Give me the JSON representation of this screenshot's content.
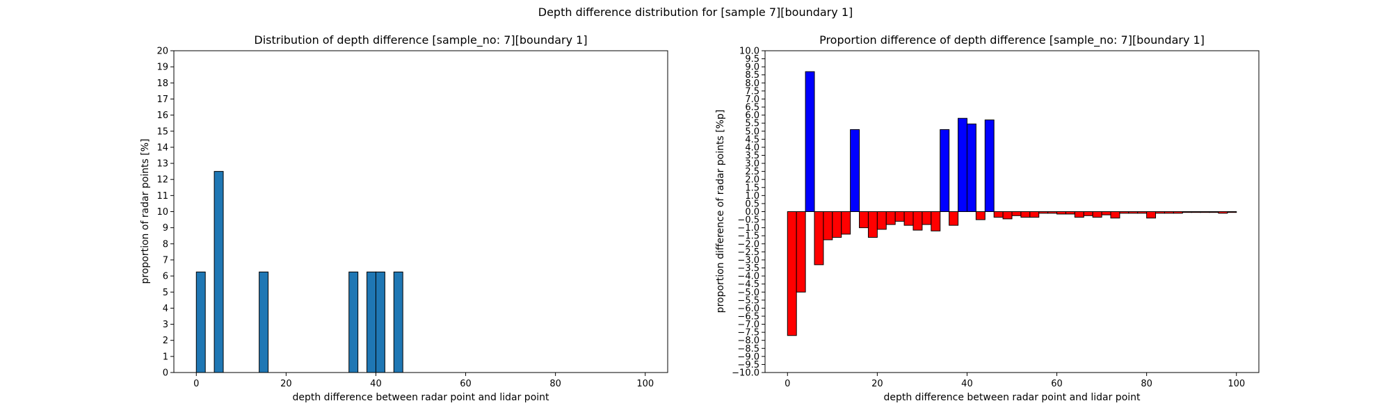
{
  "figure": {
    "suptitle": "Depth difference distribution for [sample 7][boundary 1]"
  },
  "chart_data": [
    {
      "type": "bar",
      "title": "Distribution of depth difference [sample_no: 7][boundary 1]",
      "xlabel": "depth difference between radar point and lidar point",
      "ylabel": "proportion of radar points [%]",
      "xlim": [
        -5,
        105
      ],
      "ylim": [
        0,
        20
      ],
      "xticks": [
        0,
        20,
        40,
        60,
        80,
        100
      ],
      "xtick_labels": [
        "0",
        "20",
        "40",
        "60",
        "80",
        "100"
      ],
      "yticks": [
        0,
        1,
        2,
        3,
        4,
        5,
        6,
        7,
        8,
        9,
        10,
        11,
        12,
        13,
        14,
        15,
        16,
        17,
        18,
        19,
        20
      ],
      "ytick_labels": [
        "0",
        "1",
        "2",
        "3",
        "4",
        "5",
        "6",
        "7",
        "8",
        "9",
        "10",
        "11",
        "12",
        "13",
        "14",
        "15",
        "16",
        "17",
        "18",
        "19",
        "20"
      ],
      "bar_width": 2,
      "bar_color": "#1f77b4",
      "edge_color": "#000000",
      "grid": false,
      "x": [
        1,
        5,
        15,
        35,
        39,
        41,
        45
      ],
      "values": [
        6.25,
        12.5,
        6.25,
        6.25,
        6.25,
        6.25,
        6.25
      ]
    },
    {
      "type": "bar",
      "title": "Proportion difference of depth difference [sample_no: 7][boundary 1]",
      "xlabel": "depth difference between radar point and lidar point",
      "ylabel": "proportion difference of radar points [%p]",
      "xlim": [
        -5,
        105
      ],
      "ylim": [
        -10,
        10
      ],
      "xticks": [
        0,
        20,
        40,
        60,
        80,
        100
      ],
      "xtick_labels": [
        "0",
        "20",
        "40",
        "60",
        "80",
        "100"
      ],
      "yticks": [
        -10,
        -9.5,
        -9,
        -8.5,
        -8,
        -7.5,
        -7,
        -6.5,
        -6,
        -5.5,
        -5,
        -4.5,
        -4,
        -3.5,
        -3,
        -2.5,
        -2,
        -1.5,
        -1,
        -0.5,
        0,
        0.5,
        1,
        1.5,
        2,
        2.5,
        3,
        3.5,
        4,
        4.5,
        5,
        5.5,
        6,
        6.5,
        7,
        7.5,
        8,
        8.5,
        9,
        9.5,
        10
      ],
      "ytick_labels": [
        "−10.0",
        "−9.5",
        "−9.0",
        "−8.5",
        "−8.0",
        "−7.5",
        "−7.0",
        "−6.5",
        "−6.0",
        "−5.5",
        "−5.0",
        "−4.5",
        "−4.0",
        "−3.5",
        "−3.0",
        "−2.5",
        "−2.0",
        "−1.5",
        "−1.0",
        "−0.5",
        "0.0",
        "0.5",
        "1.0",
        "1.5",
        "2.0",
        "2.5",
        "3.0",
        "3.5",
        "4.0",
        "4.5",
        "5.0",
        "5.5",
        "6.0",
        "6.5",
        "7.0",
        "7.5",
        "8.0",
        "8.5",
        "9.0",
        "9.5",
        "10.0"
      ],
      "bar_width": 2,
      "positive_color": "#0000ff",
      "negative_color": "#ff0000",
      "edge_color": "#000000",
      "grid": false,
      "x": [
        1,
        3,
        5,
        7,
        9,
        11,
        13,
        15,
        17,
        19,
        21,
        23,
        25,
        27,
        29,
        31,
        33,
        35,
        37,
        39,
        41,
        43,
        45,
        47,
        49,
        51,
        53,
        55,
        57,
        59,
        61,
        63,
        65,
        67,
        69,
        71,
        73,
        75,
        77,
        79,
        81,
        83,
        85,
        87,
        89,
        91,
        93,
        95,
        97,
        99
      ],
      "values": [
        -7.7,
        -5.0,
        8.7,
        -3.3,
        -1.75,
        -1.6,
        -1.4,
        5.1,
        -1.0,
        -1.6,
        -1.1,
        -0.8,
        -0.6,
        -0.85,
        -1.15,
        -0.8,
        -1.2,
        5.1,
        -0.85,
        5.8,
        5.45,
        -0.5,
        5.7,
        -0.35,
        -0.45,
        -0.25,
        -0.35,
        -0.35,
        -0.1,
        -0.1,
        -0.15,
        -0.15,
        -0.35,
        -0.25,
        -0.35,
        -0.2,
        -0.4,
        -0.1,
        -0.1,
        -0.1,
        -0.4,
        -0.1,
        -0.1,
        -0.1,
        -0.05,
        -0.05,
        -0.05,
        -0.05,
        -0.1,
        -0.05
      ]
    }
  ]
}
